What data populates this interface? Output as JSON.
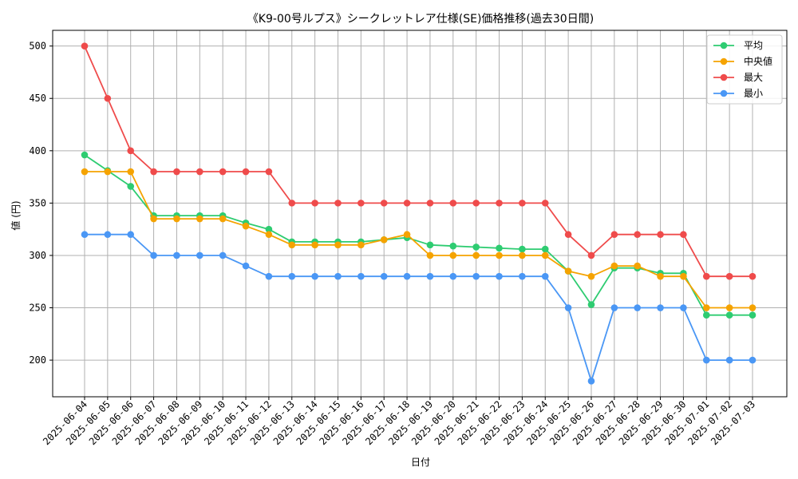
{
  "chart_data": {
    "type": "line",
    "title": "《K9-00号ルプス》シークレットレア仕様(SE)価格推移(過去30日間)",
    "xlabel": "日付",
    "ylabel": "値 (円)",
    "ylim": [
      165,
      515
    ],
    "yticks": [
      200,
      250,
      300,
      350,
      400,
      450,
      500
    ],
    "grid": true,
    "legend_position": "top-right",
    "categories": [
      "2025-06-04",
      "2025-06-05",
      "2025-06-06",
      "2025-06-07",
      "2025-06-08",
      "2025-06-09",
      "2025-06-10",
      "2025-06-11",
      "2025-06-12",
      "2025-06-13",
      "2025-06-14",
      "2025-06-15",
      "2025-06-16",
      "2025-06-17",
      "2025-06-18",
      "2025-06-19",
      "2025-06-20",
      "2025-06-21",
      "2025-06-22",
      "2025-06-23",
      "2025-06-24",
      "2025-06-25",
      "2025-06-26",
      "2025-06-27",
      "2025-06-28",
      "2025-06-29",
      "2025-06-30",
      "2025-07-01",
      "2025-07-02",
      "2025-07-03"
    ],
    "series": [
      {
        "name": "平均",
        "color": "#2ecc71",
        "values": [
          396,
          381,
          366,
          338,
          338,
          338,
          338,
          331,
          325,
          313,
          313,
          313,
          313,
          315,
          317,
          310,
          309,
          308,
          307,
          306,
          306,
          285,
          253,
          288,
          288,
          283,
          283,
          243,
          243,
          243
        ]
      },
      {
        "name": "中央値",
        "color": "#f5a300",
        "values": [
          380,
          380,
          380,
          335,
          335,
          335,
          335,
          328,
          320,
          310,
          310,
          310,
          310,
          315,
          320,
          300,
          300,
          300,
          300,
          300,
          300,
          285,
          280,
          290,
          290,
          280,
          280,
          250,
          250,
          250
        ]
      },
      {
        "name": "最大",
        "color": "#ef4b4b",
        "values": [
          500,
          450,
          400,
          380,
          380,
          380,
          380,
          380,
          380,
          350,
          350,
          350,
          350,
          350,
          350,
          350,
          350,
          350,
          350,
          350,
          350,
          320,
          300,
          320,
          320,
          320,
          320,
          280,
          280,
          280
        ]
      },
      {
        "name": "最小",
        "color": "#4a97f5",
        "values": [
          320,
          320,
          320,
          300,
          300,
          300,
          300,
          290,
          280,
          280,
          280,
          280,
          280,
          280,
          280,
          280,
          280,
          280,
          280,
          280,
          280,
          250,
          180,
          250,
          250,
          250,
          250,
          200,
          200,
          200
        ]
      }
    ]
  }
}
